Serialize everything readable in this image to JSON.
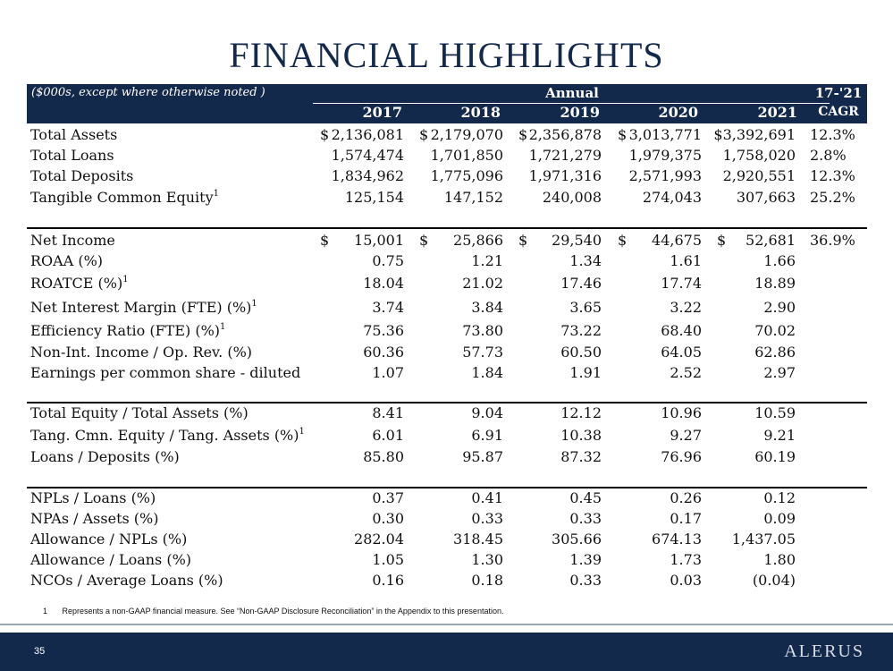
{
  "title": "FINANCIAL HIGHLIGHTS",
  "header": {
    "subtitle": "($000s, except where otherwise noted )",
    "annual": "Annual",
    "cagr_line1": "17-'21",
    "cagr_line2": "CAGR",
    "years": [
      "2017",
      "2018",
      "2019",
      "2020",
      "2021"
    ]
  },
  "rows": [
    {
      "label": "Total Assets",
      "sup": "",
      "dollar": true,
      "values": [
        "2,136,081",
        "2,179,070",
        "2,356,878",
        "3,013,771",
        "$3,392,691"
      ],
      "cagr": "12.3%"
    },
    {
      "label": "Total Loans",
      "sup": "",
      "dollar": false,
      "values": [
        "1,574,474",
        "1,701,850",
        "1,721,279",
        "1,979,375",
        "1,758,020"
      ],
      "cagr": "2.8%"
    },
    {
      "label": "Total Deposits",
      "sup": "",
      "dollar": false,
      "values": [
        "1,834,962",
        "1,775,096",
        "1,971,316",
        "2,571,993",
        "2,920,551"
      ],
      "cagr": "12.3%"
    },
    {
      "label": "Tangible Common Equity",
      "sup": "1",
      "dollar": false,
      "values": [
        "125,154",
        "147,152",
        "240,008",
        "274,043",
        "307,663"
      ],
      "cagr": "25.2%"
    },
    {
      "label": "Net Income",
      "sup": "",
      "dollar": true,
      "values": [
        "15,001",
        "25,866",
        "29,540",
        "44,675",
        "52,681"
      ],
      "cagr": "36.9%"
    },
    {
      "label": "ROAA (%)",
      "sup": "",
      "dollar": false,
      "values": [
        "0.75",
        "1.21",
        "1.34",
        "1.61",
        "1.66"
      ],
      "cagr": ""
    },
    {
      "label": "ROATCE (%)",
      "sup": "1",
      "dollar": false,
      "values": [
        "18.04",
        "21.02",
        "17.46",
        "17.74",
        "18.89"
      ],
      "cagr": ""
    },
    {
      "label": "Net Interest Margin (FTE) (%)",
      "sup": "1",
      "dollar": false,
      "values": [
        "3.74",
        "3.84",
        "3.65",
        "3.22",
        "2.90"
      ],
      "cagr": ""
    },
    {
      "label": "Efficiency Ratio (FTE) (%)",
      "sup": "1",
      "dollar": false,
      "values": [
        "75.36",
        "73.80",
        "73.22",
        "68.40",
        "70.02"
      ],
      "cagr": ""
    },
    {
      "label": "Non-Int. Income / Op. Rev. (%)",
      "sup": "",
      "dollar": false,
      "values": [
        "60.36",
        "57.73",
        "60.50",
        "64.05",
        "62.86"
      ],
      "cagr": ""
    },
    {
      "label": "Earnings per common share - diluted",
      "sup": "",
      "dollar": false,
      "values": [
        "1.07",
        "1.84",
        "1.91",
        "2.52",
        "2.97"
      ],
      "cagr": ""
    },
    {
      "label": "Total Equity / Total Assets (%)",
      "sup": "",
      "dollar": false,
      "values": [
        "8.41",
        "9.04",
        "12.12",
        "10.96",
        "10.59"
      ],
      "cagr": ""
    },
    {
      "label": "Tang. Cmn. Equity / Tang. Assets (%)",
      "sup": "1",
      "dollar": false,
      "values": [
        "6.01",
        "6.91",
        "10.38",
        "9.27",
        "9.21"
      ],
      "cagr": ""
    },
    {
      "label": "Loans / Deposits (%)",
      "sup": "",
      "dollar": false,
      "values": [
        "85.80",
        "95.87",
        "87.32",
        "76.96",
        "60.19"
      ],
      "cagr": ""
    },
    {
      "label": "NPLs / Loans (%)",
      "sup": "",
      "dollar": false,
      "values": [
        "0.37",
        "0.41",
        "0.45",
        "0.26",
        "0.12"
      ],
      "cagr": ""
    },
    {
      "label": "NPAs / Assets (%)",
      "sup": "",
      "dollar": false,
      "values": [
        "0.30",
        "0.33",
        "0.33",
        "0.17",
        "0.09"
      ],
      "cagr": ""
    },
    {
      "label": "Allowance / NPLs (%)",
      "sup": "",
      "dollar": false,
      "values": [
        "282.04",
        "318.45",
        "305.66",
        "674.13",
        "1,437.05"
      ],
      "cagr": ""
    },
    {
      "label": "Allowance / Loans (%)",
      "sup": "",
      "dollar": false,
      "values": [
        "1.05",
        "1.30",
        "1.39",
        "1.73",
        "1.80"
      ],
      "cagr": ""
    },
    {
      "label": "NCOs / Average  Loans (%)",
      "sup": "",
      "dollar": false,
      "values": [
        "0.16",
        "0.18",
        "0.33",
        "0.03",
        "(0.04)"
      ],
      "cagr": ""
    }
  ],
  "dollar_sign": "$",
  "footnote": {
    "number": "1",
    "text": "Represents a non-GAAP financial measure. See “Non-GAAP Disclosure Reconciliation” in the Appendix to this presentation."
  },
  "footer": {
    "page_number": "35",
    "logo_text": "ALERUS"
  },
  "colors": {
    "navy": "#13294b",
    "footer_logo": "#d8dde6"
  }
}
